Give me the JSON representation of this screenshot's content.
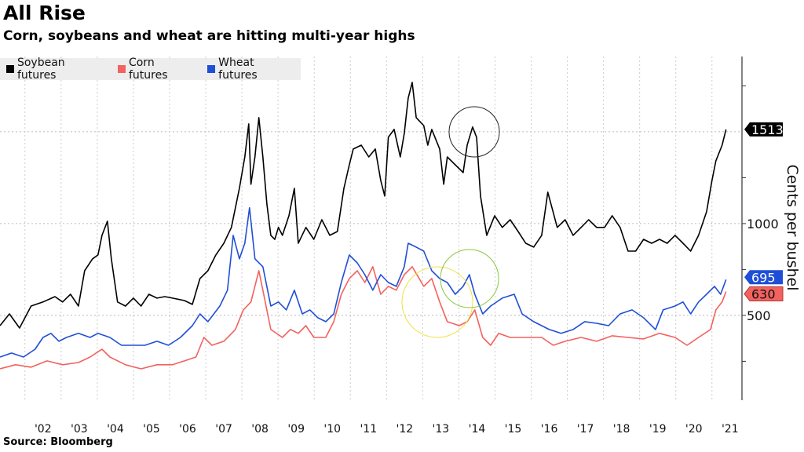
{
  "title": "All Rise",
  "subtitle": "Corn, soybeans and wheat are hitting multi-year highs",
  "source": "Source: Bloomberg",
  "chart_data": {
    "type": "line",
    "title": "All Rise",
    "ylabel": "Cents per bushel",
    "xlabel": "",
    "ylim": [
      38,
      1910
    ],
    "xlim": [
      2001.31,
      2021.83
    ],
    "y_ticks": [
      {
        "value": 500,
        "label": "500"
      },
      {
        "value": 1000,
        "label": "1000"
      }
    ],
    "y_minor_ticks": [
      250,
      750,
      1250,
      1750
    ],
    "y_grid": [
      500,
      1000,
      1500
    ],
    "x_ticks": [
      {
        "value": 2002,
        "label": "'02"
      },
      {
        "value": 2003,
        "label": "'03"
      },
      {
        "value": 2004,
        "label": "'04"
      },
      {
        "value": 2005,
        "label": "'05"
      },
      {
        "value": 2006,
        "label": "'06"
      },
      {
        "value": 2007,
        "label": "'07"
      },
      {
        "value": 2008,
        "label": "'08"
      },
      {
        "value": 2009,
        "label": "'09"
      },
      {
        "value": 2010,
        "label": "'10"
      },
      {
        "value": 2011,
        "label": "'11"
      },
      {
        "value": 2012,
        "label": "'12"
      },
      {
        "value": 2013,
        "label": "'13"
      },
      {
        "value": 2014,
        "label": "'14"
      },
      {
        "value": 2015,
        "label": "'15"
      },
      {
        "value": 2016,
        "label": "'16"
      },
      {
        "value": 2017,
        "label": "'17"
      },
      {
        "value": 2018,
        "label": "'18"
      },
      {
        "value": 2019,
        "label": "'19"
      },
      {
        "value": 2020,
        "label": "'20"
      },
      {
        "value": 2021,
        "label": "'21"
      }
    ],
    "grid": true,
    "legend_placement": "top-left",
    "series": [
      {
        "name": "Soybean futures",
        "color": "#000000",
        "last_value": "1513",
        "points": [
          [
            2001.31,
            444
          ],
          [
            2001.57,
            508
          ],
          [
            2001.85,
            431
          ],
          [
            2002.17,
            551
          ],
          [
            2002.5,
            573
          ],
          [
            2002.83,
            602
          ],
          [
            2003.04,
            573
          ],
          [
            2003.26,
            615
          ],
          [
            2003.48,
            551
          ],
          [
            2003.65,
            743
          ],
          [
            2003.87,
            808
          ],
          [
            2004.02,
            829
          ],
          [
            2004.13,
            936
          ],
          [
            2004.28,
            1013
          ],
          [
            2004.39,
            808
          ],
          [
            2004.56,
            573
          ],
          [
            2004.78,
            551
          ],
          [
            2005.0,
            594
          ],
          [
            2005.21,
            551
          ],
          [
            2005.43,
            615
          ],
          [
            2005.65,
            594
          ],
          [
            2005.87,
            602
          ],
          [
            2006.08,
            594
          ],
          [
            2006.41,
            581
          ],
          [
            2006.63,
            560
          ],
          [
            2006.84,
            701
          ],
          [
            2007.06,
            743
          ],
          [
            2007.28,
            829
          ],
          [
            2007.5,
            893
          ],
          [
            2007.71,
            979
          ],
          [
            2007.93,
            1192
          ],
          [
            2008.08,
            1363
          ],
          [
            2008.19,
            1543
          ],
          [
            2008.25,
            1214
          ],
          [
            2008.36,
            1363
          ],
          [
            2008.47,
            1577
          ],
          [
            2008.58,
            1363
          ],
          [
            2008.69,
            1107
          ],
          [
            2008.8,
            936
          ],
          [
            2008.91,
            914
          ],
          [
            2009.01,
            979
          ],
          [
            2009.12,
            936
          ],
          [
            2009.3,
            1043
          ],
          [
            2009.45,
            1192
          ],
          [
            2009.56,
            893
          ],
          [
            2009.77,
            979
          ],
          [
            2009.99,
            914
          ],
          [
            2010.21,
            1021
          ],
          [
            2010.43,
            936
          ],
          [
            2010.64,
            957
          ],
          [
            2010.82,
            1192
          ],
          [
            2010.97,
            1320
          ],
          [
            2011.08,
            1406
          ],
          [
            2011.3,
            1427
          ],
          [
            2011.51,
            1363
          ],
          [
            2011.69,
            1406
          ],
          [
            2011.84,
            1235
          ],
          [
            2011.95,
            1150
          ],
          [
            2012.05,
            1470
          ],
          [
            2012.21,
            1513
          ],
          [
            2012.38,
            1363
          ],
          [
            2012.49,
            1491
          ],
          [
            2012.6,
            1684
          ],
          [
            2012.71,
            1769
          ],
          [
            2012.82,
            1577
          ],
          [
            2013.03,
            1534
          ],
          [
            2013.14,
            1427
          ],
          [
            2013.25,
            1513
          ],
          [
            2013.47,
            1406
          ],
          [
            2013.58,
            1214
          ],
          [
            2013.68,
            1363
          ],
          [
            2013.9,
            1320
          ],
          [
            2014.12,
            1278
          ],
          [
            2014.23,
            1427
          ],
          [
            2014.38,
            1526
          ],
          [
            2014.49,
            1470
          ],
          [
            2014.6,
            1150
          ],
          [
            2014.77,
            936
          ],
          [
            2014.99,
            1043
          ],
          [
            2015.2,
            979
          ],
          [
            2015.42,
            1021
          ],
          [
            2015.64,
            957
          ],
          [
            2015.85,
            893
          ],
          [
            2016.07,
            872
          ],
          [
            2016.29,
            936
          ],
          [
            2016.46,
            1171
          ],
          [
            2016.72,
            979
          ],
          [
            2016.94,
            1021
          ],
          [
            2017.16,
            936
          ],
          [
            2017.38,
            979
          ],
          [
            2017.59,
            1021
          ],
          [
            2017.81,
            979
          ],
          [
            2018.03,
            979
          ],
          [
            2018.24,
            1043
          ],
          [
            2018.46,
            979
          ],
          [
            2018.68,
            850
          ],
          [
            2018.89,
            850
          ],
          [
            2019.11,
            914
          ],
          [
            2019.33,
            893
          ],
          [
            2019.55,
            914
          ],
          [
            2019.76,
            893
          ],
          [
            2019.98,
            936
          ],
          [
            2020.2,
            893
          ],
          [
            2020.41,
            850
          ],
          [
            2020.63,
            936
          ],
          [
            2020.85,
            1064
          ],
          [
            2021.0,
            1235
          ],
          [
            2021.11,
            1342
          ],
          [
            2021.28,
            1427
          ],
          [
            2021.39,
            1513
          ]
        ]
      },
      {
        "name": "Corn futures",
        "color": "#f2625f",
        "last_value": "630",
        "points": [
          [
            2001.31,
            209
          ],
          [
            2001.74,
            231
          ],
          [
            2002.17,
            218
          ],
          [
            2002.61,
            252
          ],
          [
            2003.04,
            231
          ],
          [
            2003.48,
            243
          ],
          [
            2003.8,
            273
          ],
          [
            2004.13,
            316
          ],
          [
            2004.35,
            273
          ],
          [
            2004.78,
            231
          ],
          [
            2005.21,
            209
          ],
          [
            2005.65,
            231
          ],
          [
            2006.08,
            231
          ],
          [
            2006.41,
            252
          ],
          [
            2006.73,
            273
          ],
          [
            2006.95,
            380
          ],
          [
            2007.17,
            337
          ],
          [
            2007.5,
            359
          ],
          [
            2007.82,
            423
          ],
          [
            2008.04,
            530
          ],
          [
            2008.25,
            573
          ],
          [
            2008.47,
            743
          ],
          [
            2008.58,
            637
          ],
          [
            2008.8,
            423
          ],
          [
            2009.12,
            380
          ],
          [
            2009.34,
            423
          ],
          [
            2009.56,
            402
          ],
          [
            2009.77,
            444
          ],
          [
            2009.99,
            380
          ],
          [
            2010.32,
            380
          ],
          [
            2010.54,
            466
          ],
          [
            2010.75,
            615
          ],
          [
            2010.97,
            701
          ],
          [
            2011.19,
            743
          ],
          [
            2011.4,
            679
          ],
          [
            2011.62,
            765
          ],
          [
            2011.84,
            615
          ],
          [
            2012.05,
            658
          ],
          [
            2012.27,
            637
          ],
          [
            2012.49,
            722
          ],
          [
            2012.71,
            765
          ],
          [
            2013.03,
            658
          ],
          [
            2013.25,
            701
          ],
          [
            2013.47,
            573
          ],
          [
            2013.68,
            466
          ],
          [
            2014.01,
            444
          ],
          [
            2014.23,
            466
          ],
          [
            2014.44,
            530
          ],
          [
            2014.66,
            380
          ],
          [
            2014.88,
            337
          ],
          [
            2015.1,
            402
          ],
          [
            2015.42,
            380
          ],
          [
            2015.85,
            380
          ],
          [
            2016.29,
            380
          ],
          [
            2016.61,
            337
          ],
          [
            2016.94,
            359
          ],
          [
            2017.38,
            380
          ],
          [
            2017.81,
            359
          ],
          [
            2018.24,
            389
          ],
          [
            2018.68,
            380
          ],
          [
            2019.11,
            372
          ],
          [
            2019.55,
            402
          ],
          [
            2019.98,
            380
          ],
          [
            2020.31,
            337
          ],
          [
            2020.63,
            380
          ],
          [
            2020.96,
            423
          ],
          [
            2021.11,
            530
          ],
          [
            2021.28,
            573
          ],
          [
            2021.39,
            630
          ]
        ]
      },
      {
        "name": "Wheat futures",
        "color": "#1f4fd6",
        "last_value": "695",
        "points": [
          [
            2001.31,
            273
          ],
          [
            2001.63,
            295
          ],
          [
            2001.96,
            273
          ],
          [
            2002.28,
            316
          ],
          [
            2002.5,
            380
          ],
          [
            2002.72,
            402
          ],
          [
            2002.94,
            359
          ],
          [
            2003.15,
            380
          ],
          [
            2003.48,
            402
          ],
          [
            2003.8,
            380
          ],
          [
            2004.02,
            402
          ],
          [
            2004.35,
            380
          ],
          [
            2004.67,
            337
          ],
          [
            2005.0,
            337
          ],
          [
            2005.32,
            337
          ],
          [
            2005.65,
            359
          ],
          [
            2005.97,
            337
          ],
          [
            2006.3,
            380
          ],
          [
            2006.63,
            444
          ],
          [
            2006.84,
            508
          ],
          [
            2007.06,
            466
          ],
          [
            2007.39,
            551
          ],
          [
            2007.6,
            637
          ],
          [
            2007.76,
            936
          ],
          [
            2007.93,
            808
          ],
          [
            2008.08,
            893
          ],
          [
            2008.21,
            1086
          ],
          [
            2008.36,
            808
          ],
          [
            2008.58,
            765
          ],
          [
            2008.8,
            551
          ],
          [
            2009.01,
            573
          ],
          [
            2009.23,
            530
          ],
          [
            2009.45,
            637
          ],
          [
            2009.67,
            508
          ],
          [
            2009.88,
            530
          ],
          [
            2010.1,
            487
          ],
          [
            2010.32,
            466
          ],
          [
            2010.54,
            508
          ],
          [
            2010.75,
            679
          ],
          [
            2010.97,
            829
          ],
          [
            2011.19,
            786
          ],
          [
            2011.4,
            722
          ],
          [
            2011.62,
            637
          ],
          [
            2011.84,
            722
          ],
          [
            2012.05,
            679
          ],
          [
            2012.27,
            658
          ],
          [
            2012.49,
            765
          ],
          [
            2012.6,
            893
          ],
          [
            2012.82,
            872
          ],
          [
            2013.03,
            850
          ],
          [
            2013.25,
            743
          ],
          [
            2013.47,
            701
          ],
          [
            2013.68,
            679
          ],
          [
            2013.9,
            615
          ],
          [
            2014.12,
            658
          ],
          [
            2014.29,
            722
          ],
          [
            2014.44,
            615
          ],
          [
            2014.66,
            508
          ],
          [
            2014.88,
            551
          ],
          [
            2015.2,
            594
          ],
          [
            2015.53,
            615
          ],
          [
            2015.75,
            508
          ],
          [
            2016.07,
            466
          ],
          [
            2016.5,
            423
          ],
          [
            2016.83,
            402
          ],
          [
            2017.16,
            423
          ],
          [
            2017.48,
            466
          ],
          [
            2017.81,
            457
          ],
          [
            2018.14,
            444
          ],
          [
            2018.46,
            508
          ],
          [
            2018.79,
            530
          ],
          [
            2019.11,
            487
          ],
          [
            2019.44,
            423
          ],
          [
            2019.65,
            530
          ],
          [
            2019.98,
            551
          ],
          [
            2020.2,
            573
          ],
          [
            2020.41,
            508
          ],
          [
            2020.63,
            573
          ],
          [
            2020.85,
            615
          ],
          [
            2021.07,
            658
          ],
          [
            2021.24,
            615
          ],
          [
            2021.39,
            695
          ]
        ]
      }
    ]
  }
}
